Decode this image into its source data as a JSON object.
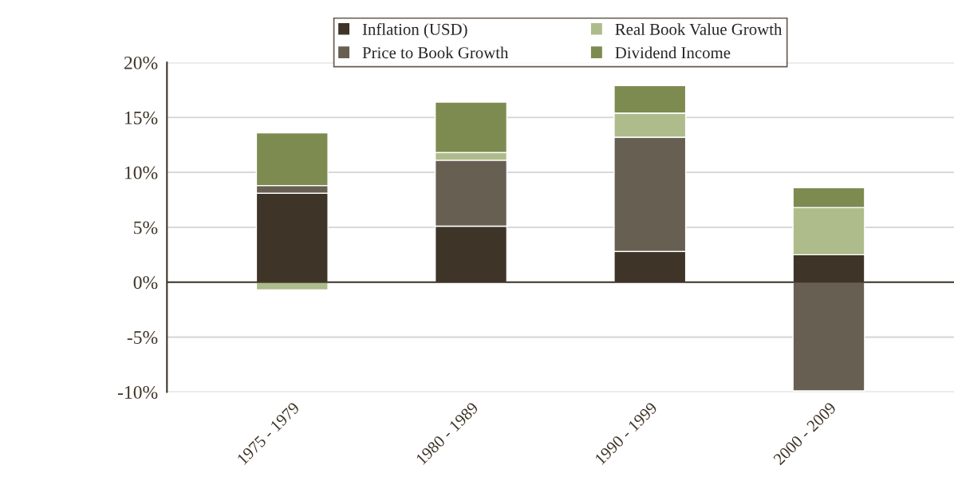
{
  "chart_data": {
    "type": "bar",
    "stacked": true,
    "categories": [
      "1975 - 1979",
      "1980 - 1989",
      "1990 - 1999",
      "2000 - 2009"
    ],
    "series": [
      {
        "name": "Inflation (USD)",
        "color": "#3e3427",
        "values": [
          8.1,
          5.1,
          2.8,
          2.5
        ]
      },
      {
        "name": "Price to Book Growth",
        "color": "#685f53",
        "values": [
          0.7,
          6.0,
          10.4,
          -9.9
        ]
      },
      {
        "name": "Real Book Value Growth",
        "color": "#aebc8c",
        "values": [
          -0.7,
          0.7,
          2.2,
          4.3
        ]
      },
      {
        "name": "Dividend Income",
        "color": "#7e8b50",
        "values": [
          4.8,
          4.6,
          2.5,
          1.8
        ]
      }
    ],
    "ylim": [
      -10,
      20
    ],
    "yticks": [
      {
        "value": -10,
        "label": "-10%"
      },
      {
        "value": -5,
        "label": "-5%"
      },
      {
        "value": 0,
        "label": "0%"
      },
      {
        "value": 5,
        "label": "5%"
      },
      {
        "value": 10,
        "label": "10%"
      },
      {
        "value": 15,
        "label": "15%"
      },
      {
        "value": 20,
        "label": "20%"
      }
    ],
    "grid": "y",
    "legend": "top"
  }
}
